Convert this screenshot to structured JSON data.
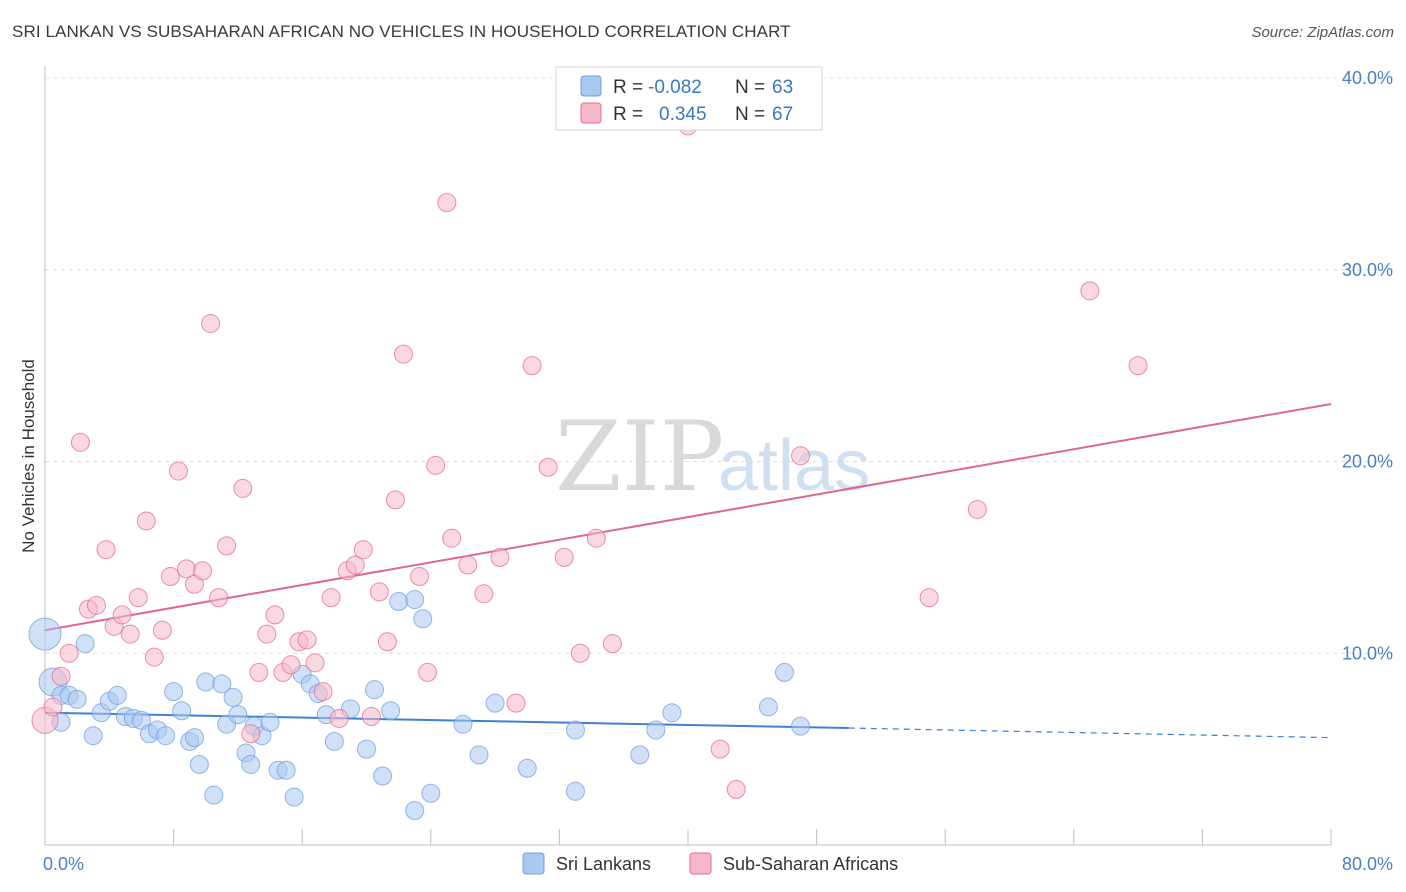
{
  "title": "SRI LANKAN VS SUBSAHARAN AFRICAN NO VEHICLES IN HOUSEHOLD CORRELATION CHART",
  "source": "Source: ZipAtlas.com",
  "watermark": {
    "zip": "ZIP",
    "atlas": "atlas"
  },
  "legend_top": {
    "r_label": "R =",
    "n_label": "N =",
    "rows": [
      {
        "r": "-0.082",
        "n": "63",
        "color": "#aac9f0"
      },
      {
        "r": "0.345",
        "n": "67",
        "color": "#f5b8cb"
      }
    ]
  },
  "chart_data": {
    "type": "scatter",
    "title": "SRI LANKAN VS SUBSAHARAN AFRICAN NO VEHICLES IN HOUSEHOLD CORRELATION CHART",
    "xlabel": "",
    "ylabel": "No Vehicles in Household",
    "xlim": [
      0,
      80
    ],
    "ylim": [
      0,
      40
    ],
    "x_tick_labels": [
      "0.0%",
      "80.0%"
    ],
    "y_ticks": [
      10,
      20,
      30,
      40
    ],
    "y_tick_labels": [
      "10.0%",
      "20.0%",
      "30.0%",
      "40.0%"
    ],
    "grid": true,
    "legend_position": "top-center",
    "series": [
      {
        "name": "Sri Lankans",
        "color": "#6f9fe0",
        "fill": "#aac9f0",
        "R": -0.082,
        "N": 63,
        "trend": {
          "x": [
            0,
            50
          ],
          "y": [
            6.9,
            6.1
          ],
          "dashed_to": [
            80,
            5.6
          ]
        },
        "points": [
          [
            0,
            11.0
          ],
          [
            0.5,
            8.5
          ],
          [
            1,
            6.4
          ],
          [
            1,
            7.8
          ],
          [
            1.5,
            7.8
          ],
          [
            2,
            7.6
          ],
          [
            2.5,
            10.5
          ],
          [
            3,
            5.7
          ],
          [
            3.5,
            6.9
          ],
          [
            4,
            7.5
          ],
          [
            4.5,
            7.8
          ],
          [
            5,
            6.7
          ],
          [
            5.5,
            6.6
          ],
          [
            6,
            6.5
          ],
          [
            6.5,
            5.8
          ],
          [
            7,
            6.0
          ],
          [
            7.5,
            5.7
          ],
          [
            8,
            8.0
          ],
          [
            8.5,
            7.0
          ],
          [
            9,
            5.4
          ],
          [
            9.3,
            5.6
          ],
          [
            9.6,
            4.2
          ],
          [
            10,
            8.5
          ],
          [
            10.5,
            2.6
          ],
          [
            11,
            8.4
          ],
          [
            11.3,
            6.3
          ],
          [
            11.7,
            7.7
          ],
          [
            12,
            6.8
          ],
          [
            12.5,
            4.8
          ],
          [
            12.8,
            4.2
          ],
          [
            13,
            6.2
          ],
          [
            13.5,
            5.7
          ],
          [
            14,
            6.4
          ],
          [
            14.5,
            3.9
          ],
          [
            15,
            3.9
          ],
          [
            15.5,
            2.5
          ],
          [
            16,
            8.9
          ],
          [
            16.5,
            8.4
          ],
          [
            17,
            7.9
          ],
          [
            17.5,
            6.8
          ],
          [
            18,
            5.4
          ],
          [
            19,
            7.1
          ],
          [
            20,
            5.0
          ],
          [
            20.5,
            8.1
          ],
          [
            21,
            3.6
          ],
          [
            21.5,
            7.0
          ],
          [
            22,
            12.7
          ],
          [
            23,
            12.8
          ],
          [
            23.5,
            11.8
          ],
          [
            23,
            1.8
          ],
          [
            24,
            2.7
          ],
          [
            26,
            6.3
          ],
          [
            27,
            4.7
          ],
          [
            28,
            7.4
          ],
          [
            30,
            4.0
          ],
          [
            33,
            6.0
          ],
          [
            33,
            2.8
          ],
          [
            37,
            4.7
          ],
          [
            38,
            6.0
          ],
          [
            39,
            6.9
          ],
          [
            45,
            7.2
          ],
          [
            46,
            9.0
          ],
          [
            47,
            6.2
          ]
        ]
      },
      {
        "name": "Sub-Saharan Africans",
        "color": "#e46b94",
        "fill": "#f5b8cb",
        "R": 0.345,
        "N": 67,
        "trend": {
          "x": [
            0,
            80
          ],
          "y": [
            11.2,
            23.0
          ]
        },
        "points": [
          [
            0,
            6.5
          ],
          [
            0.5,
            7.2
          ],
          [
            1,
            8.8
          ],
          [
            1.5,
            10.0
          ],
          [
            2.2,
            21.0
          ],
          [
            2.7,
            12.3
          ],
          [
            3.2,
            12.5
          ],
          [
            3.8,
            15.4
          ],
          [
            4.3,
            11.4
          ],
          [
            4.8,
            12.0
          ],
          [
            5.3,
            11.0
          ],
          [
            5.8,
            12.9
          ],
          [
            6.3,
            16.9
          ],
          [
            6.8,
            9.8
          ],
          [
            7.3,
            11.2
          ],
          [
            7.8,
            14.0
          ],
          [
            8.3,
            19.5
          ],
          [
            8.8,
            14.4
          ],
          [
            9.3,
            13.6
          ],
          [
            9.8,
            14.3
          ],
          [
            10.3,
            27.2
          ],
          [
            10.8,
            12.9
          ],
          [
            11.3,
            15.6
          ],
          [
            12.3,
            18.6
          ],
          [
            12.8,
            5.8
          ],
          [
            13.3,
            9.0
          ],
          [
            13.8,
            11.0
          ],
          [
            14.3,
            12.0
          ],
          [
            14.8,
            9.0
          ],
          [
            15.3,
            9.4
          ],
          [
            15.8,
            10.6
          ],
          [
            16.3,
            10.7
          ],
          [
            16.8,
            9.5
          ],
          [
            17.3,
            8.0
          ],
          [
            17.8,
            12.9
          ],
          [
            18.3,
            6.6
          ],
          [
            18.8,
            14.3
          ],
          [
            19.3,
            14.6
          ],
          [
            19.8,
            15.4
          ],
          [
            20.3,
            6.7
          ],
          [
            20.8,
            13.2
          ],
          [
            21.3,
            10.6
          ],
          [
            21.8,
            18.0
          ],
          [
            22.3,
            25.6
          ],
          [
            23.3,
            14.0
          ],
          [
            23.8,
            9.0
          ],
          [
            24.3,
            19.8
          ],
          [
            25.3,
            16.0
          ],
          [
            26.3,
            14.6
          ],
          [
            27.3,
            13.1
          ],
          [
            28.3,
            15.0
          ],
          [
            29.3,
            7.4
          ],
          [
            30.3,
            25.0
          ],
          [
            31.3,
            19.7
          ],
          [
            32.3,
            15.0
          ],
          [
            33.3,
            10.0
          ],
          [
            34.3,
            16.0
          ],
          [
            35.3,
            10.5
          ],
          [
            25,
            33.5
          ],
          [
            40,
            37.5
          ],
          [
            42,
            5.0
          ],
          [
            43,
            2.9
          ],
          [
            47,
            20.3
          ],
          [
            55,
            12.9
          ],
          [
            58,
            17.5
          ],
          [
            65,
            28.9
          ],
          [
            68,
            25.0
          ]
        ]
      }
    ]
  }
}
